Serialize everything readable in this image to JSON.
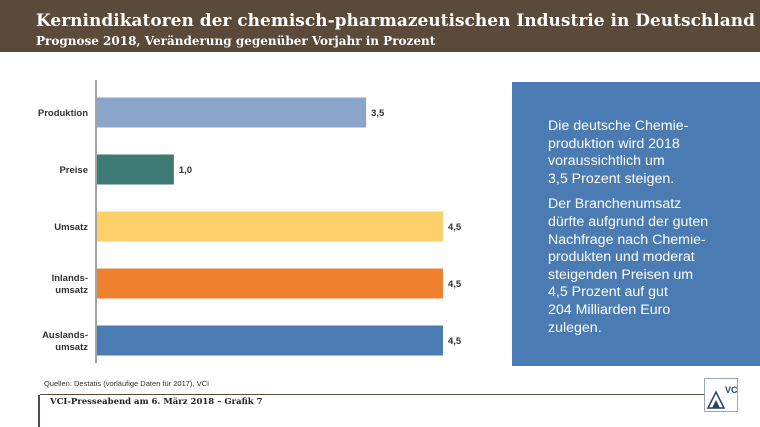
{
  "header": {
    "title": "Kernindikatoren der chemisch-pharmazeutischen Industrie in Deutschland",
    "subtitle": "Prognose 2018, Veränderung gegenüber Vorjahr in Prozent"
  },
  "chart_data": {
    "type": "bar",
    "orientation": "horizontal",
    "title": "Kernindikatoren der chemisch-pharmazeutischen Industrie in Deutschland",
    "subtitle": "Prognose 2018, Veränderung gegenüber Vorjahr in Prozent",
    "categories": [
      "Produktion",
      "Preise",
      "Umsatz",
      "Inlands-\numsatz",
      "Auslands-\numsatz"
    ],
    "values": [
      3.5,
      1.0,
      4.5,
      4.5,
      4.5
    ],
    "value_labels": [
      "3,5",
      "1,0",
      "4,5",
      "4,5",
      "4,5"
    ],
    "colors": [
      "#8aa5c9",
      "#3d7a73",
      "#fdd06a",
      "#f0822f",
      "#4a7cb3"
    ],
    "xlim": [
      0,
      4.5
    ],
    "xlabel": "",
    "ylabel": "",
    "grid": false
  },
  "infobox": {
    "paragraph1": "Die deutsche Chemie-\nproduktion wird 2018\nvoraussichtlich um\n3,5 Prozent steigen.",
    "paragraph2": "Der Branchenumsatz\ndürfte aufgrund der guten\nNachfrage nach Chemie-\nprodukten und moderat\nsteigenden Preisen um\n4,5 Prozent auf gut\n204 Milliarden Euro\nzulegen."
  },
  "source": "Quellen: Destatis (vorläufige Daten für 2017), VCI",
  "footer": "VCI-Presseabend am 6. März 2018 – Grafik 7",
  "logo": {
    "text": "VCI",
    "icon": "vci-logo-icon"
  }
}
